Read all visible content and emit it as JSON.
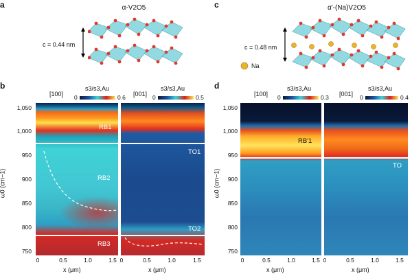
{
  "panels": {
    "a": {
      "letter": "a",
      "title": "α-V2O5",
      "c_label": "c = 0.44 nm"
    },
    "c": {
      "letter": "c",
      "title": "α′-(Na)V2O5",
      "c_label": "c = 0.48 nm",
      "legend": "Na"
    },
    "b": {
      "letter": "b",
      "y_label": "ω0 (cm−1)",
      "y_ticks": [
        "1,050",
        "1,000",
        "950",
        "900",
        "850",
        "800",
        "750"
      ],
      "x_label": "x (μm)",
      "x_ticks": [
        "0",
        "0.5",
        "1.0",
        "1.5"
      ],
      "left": {
        "direction": "[100]",
        "cbar_title": "s3/s3,Au",
        "cbar_min": "0",
        "cbar_max": "0.6",
        "labels": [
          "RB1",
          "RB2",
          "RB3"
        ]
      },
      "right": {
        "direction": "[001]",
        "cbar_title": "s3/s3,Au",
        "cbar_min": "0",
        "cbar_max": "0.5",
        "labels": [
          "TO1",
          "TO2"
        ]
      }
    },
    "d": {
      "letter": "d",
      "y_label": "ω0 (cm−1)",
      "y_ticks": [
        "1,050",
        "1,000",
        "950",
        "900",
        "850",
        "800",
        "750"
      ],
      "x_label": "x (μm)",
      "x_ticks": [
        "0",
        "0.5",
        "1.0",
        "1.5"
      ],
      "left": {
        "direction": "[100]",
        "cbar_title": "s3/s3,Au",
        "cbar_min": "0",
        "cbar_max": "0.3",
        "labels": [
          "RB′1"
        ]
      },
      "right": {
        "direction": "[001]",
        "cbar_title": "s3/s3,Au",
        "cbar_min": "0",
        "cbar_max": "0.4",
        "labels": [
          "TO"
        ]
      }
    }
  },
  "colors": {
    "cmap_dark": "#0b1a3a",
    "cmap_cyan": "#3fd2d6",
    "cmap_red": "#d4221c",
    "cmap_yellow": "#ffe45c",
    "atom_red": "#e2382b",
    "atom_na": "#e8b42e",
    "poly": "#7fd3dc"
  }
}
